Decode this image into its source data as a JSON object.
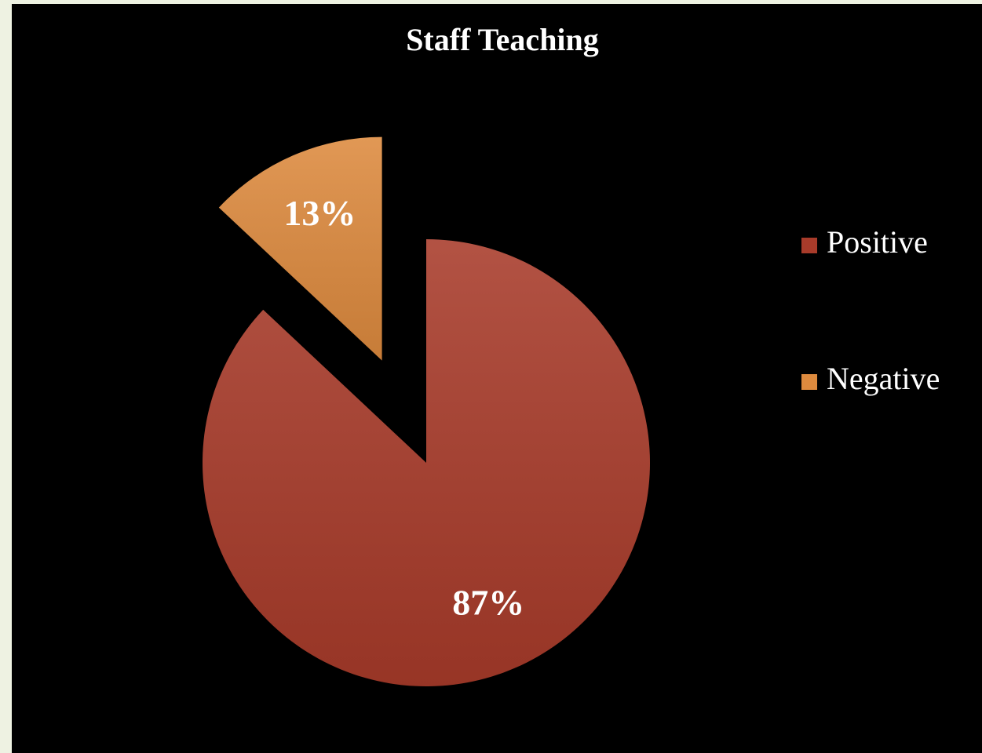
{
  "chart_data": {
    "type": "pie",
    "title": "Staff Teaching",
    "categories": [
      "Positive",
      "Negative"
    ],
    "values": [
      87,
      13
    ],
    "value_labels": [
      "87%",
      "13%"
    ],
    "colors": [
      "#a83b2a",
      "#dd8a3e"
    ],
    "legend": "right"
  }
}
